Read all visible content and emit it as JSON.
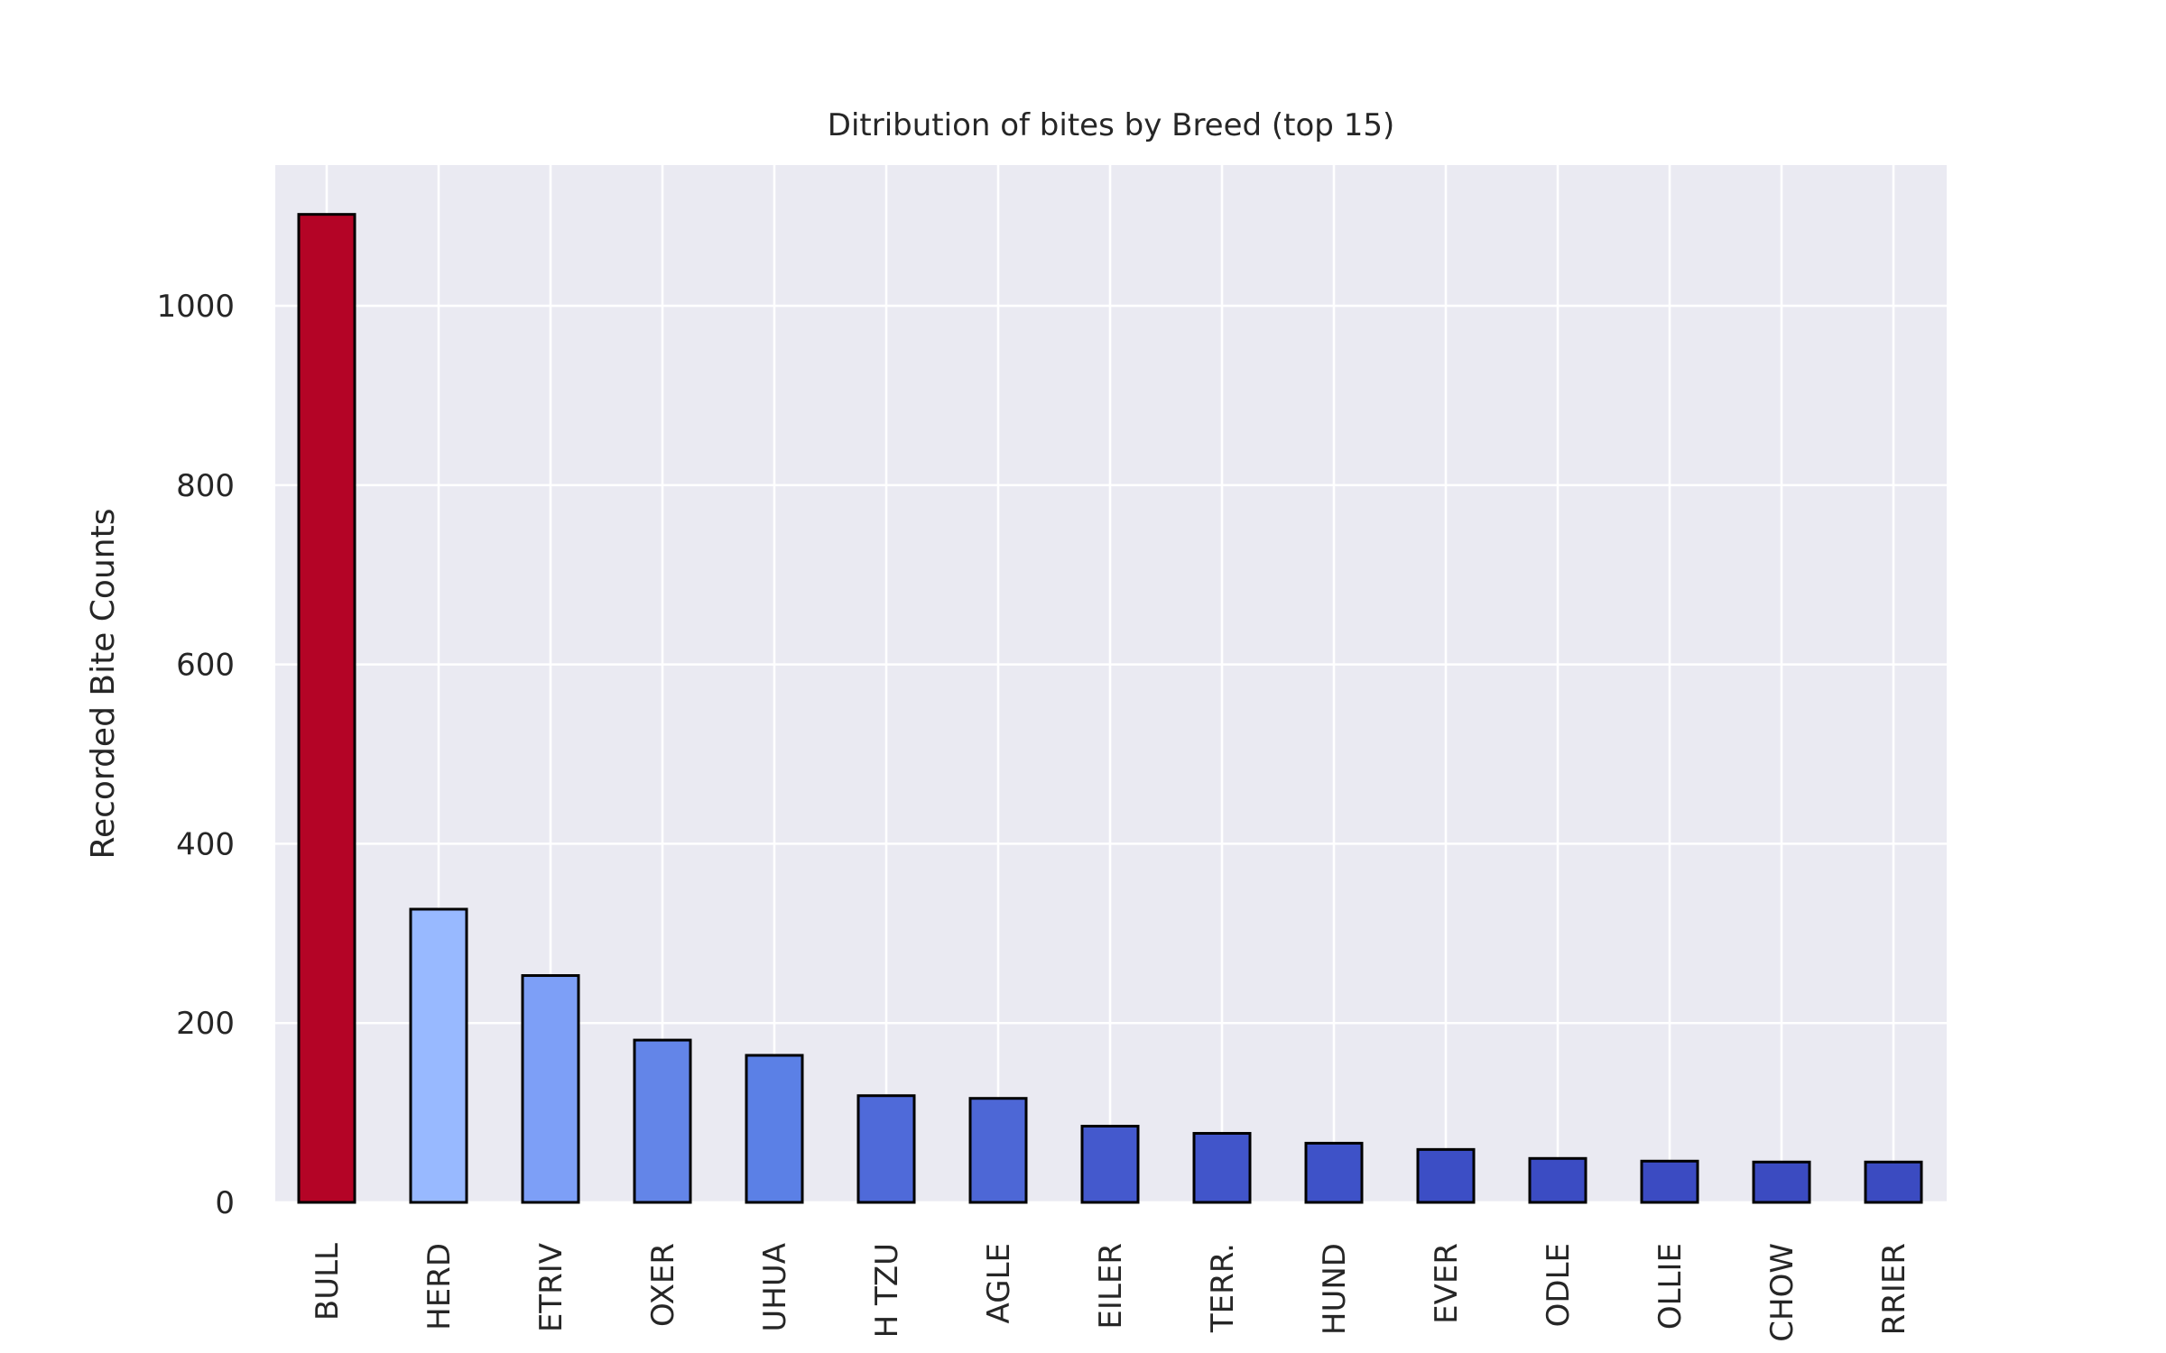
{
  "chart_data": {
    "type": "bar",
    "title": "Ditribution of bites by Breed (top 15)",
    "xlabel": "",
    "ylabel": "Recorded Bite Counts",
    "categories": [
      "BULL",
      "HERD",
      "ETRIV",
      "OXER",
      "UHUA",
      "H TZU",
      "AGLE",
      "EILER",
      "TERR.",
      "HUND",
      "EVER",
      "ODLE",
      "OLLIE",
      "CHOW",
      "RRIER"
    ],
    "values": [
      1102,
      327,
      253,
      181,
      164,
      119,
      116,
      85,
      77,
      66,
      59,
      49,
      46,
      45,
      45
    ],
    "colors": [
      "#b40426",
      "#98b9ff",
      "#7d9ff7",
      "#6385e8",
      "#5b80e6",
      "#4f6ad9",
      "#4d67d6",
      "#4459cd",
      "#4155ca",
      "#3e52c8",
      "#3c4ec5",
      "#3b4cc3",
      "#3b4bc2",
      "#3b4bc1",
      "#3b4bc1"
    ],
    "yticks": [
      0,
      200,
      400,
      600,
      800,
      1000
    ],
    "ylim": [
      0,
      1157
    ],
    "grid": true,
    "legend": "none"
  }
}
